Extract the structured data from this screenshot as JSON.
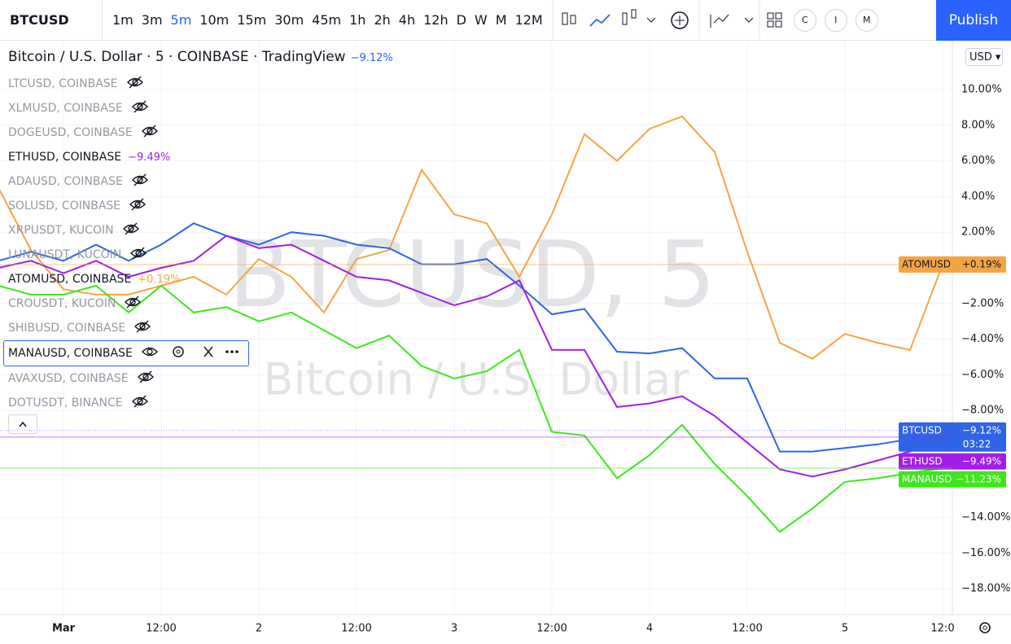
{
  "toolbar": {
    "symbol": "BTCUSD",
    "intervals": [
      "1m",
      "3m",
      "5m",
      "10m",
      "15m",
      "30m",
      "45m",
      "1h",
      "2h",
      "4h",
      "12h",
      "D",
      "W",
      "M",
      "12M"
    ],
    "buttons": [
      "C",
      "I",
      "M"
    ],
    "publish": "Publish"
  },
  "header": {
    "title": "Bitcoin / U.S. Dollar · 5 · COINBASE · TradingView",
    "change": "−9.12%",
    "currency": "USD"
  },
  "watermark": {
    "line1": "BTCUSD, 5",
    "line2": "Bitcoin / U.S. Dollar"
  },
  "legend": {
    "items": [
      {
        "label": "LTCUSD, COINBASE"
      },
      {
        "label": "XLMUSD, COINBASE"
      },
      {
        "label": "DOGEUSD, COINBASE"
      },
      {
        "label": "ETHUSD, COINBASE",
        "change": "−9.49%"
      },
      {
        "label": "ADAUSD, COINBASE"
      },
      {
        "label": "SOLUSD, COINBASE"
      },
      {
        "label": "XRPUSDT, KUCOIN"
      },
      {
        "label": "LUNAUSDT, KUCOIN"
      },
      {
        "label": "ATOMUSD, COINBASE",
        "change": "+0.19%"
      },
      {
        "label": "CROUSDT, KUCOIN"
      },
      {
        "label": "SHIBUSD, COINBASE"
      },
      {
        "label": "MANAUSD, COINBASE"
      },
      {
        "label": "AVAXUSD, COINBASE"
      },
      {
        "label": "DOTUSDT, BINANCE"
      }
    ]
  },
  "chart_data": {
    "type": "line",
    "countdown": "03:22",
    "grid": true,
    "x": [
      -8,
      -4,
      0,
      4,
      8,
      12,
      16,
      20,
      24,
      28,
      32,
      36,
      40,
      44,
      48,
      52,
      56,
      60,
      64,
      68,
      72,
      76,
      80,
      84,
      88,
      92,
      96,
      100,
      104,
      108
    ],
    "xlim": [
      -7.8,
      109.2
    ],
    "xticks": [
      {
        "value": 0,
        "label": "Mar"
      },
      {
        "value": 12,
        "label": "12:00"
      },
      {
        "value": 24,
        "label": "2"
      },
      {
        "value": 36,
        "label": "12:00"
      },
      {
        "value": 48,
        "label": "3"
      },
      {
        "value": 60,
        "label": "12:00"
      },
      {
        "value": 72,
        "label": "4"
      },
      {
        "value": 84,
        "label": "12:00"
      },
      {
        "value": 96,
        "label": "5"
      },
      {
        "value": 108,
        "label": "12:0"
      }
    ],
    "ylim": [
      -19.45,
      12.74
    ],
    "yticks": [
      {
        "value": 10,
        "label": "10.00%"
      },
      {
        "value": 8,
        "label": "8.00%"
      },
      {
        "value": 6,
        "label": "6.00%"
      },
      {
        "value": 4,
        "label": "4.00%"
      },
      {
        "value": 2,
        "label": "2.00%"
      },
      {
        "value": -2,
        "label": "−2.00%"
      },
      {
        "value": -4,
        "label": "−4.00%"
      },
      {
        "value": -6,
        "label": "−6.00%"
      },
      {
        "value": -8,
        "label": "−8.00%"
      },
      {
        "value": -14,
        "label": "−14.00%"
      },
      {
        "value": -16,
        "label": "−16.00%"
      },
      {
        "value": -18,
        "label": "−18.00%"
      }
    ],
    "series": [
      {
        "name": "ATOMUSD",
        "color": "#f5a443",
        "values": [
          4.5,
          1.0,
          -1.2,
          -1.5,
          -1.5,
          -1.0,
          -0.5,
          -1.5,
          0.5,
          -0.5,
          -2.5,
          0.5,
          1.0,
          5.5,
          3.0,
          2.5,
          -0.5,
          3.0,
          7.5,
          6.0,
          7.8,
          8.5,
          6.5,
          0.9,
          -4.2,
          -5.1,
          -3.7,
          -4.2,
          -4.6,
          0.19
        ],
        "value_labels": [
          null,
          null,
          null,
          null,
          null,
          null,
          null,
          null,
          null,
          null,
          null,
          null,
          null,
          null,
          null,
          null,
          null,
          null,
          null,
          null,
          null,
          null,
          null,
          null,
          null,
          null,
          null,
          null,
          null,
          "+0.19%"
        ]
      },
      {
        "name": "BTCUSD",
        "color": "#2f64e6",
        "values": [
          0.4,
          0.9,
          0.4,
          1.3,
          0.4,
          1.3,
          2.5,
          1.8,
          1.3,
          2.0,
          1.8,
          1.3,
          1.1,
          0.2,
          0.2,
          0.5,
          -1.0,
          -2.6,
          -2.3,
          -4.7,
          -4.8,
          -4.5,
          -6.2,
          -6.2,
          -10.3,
          -10.3,
          -10.1,
          -9.9,
          -9.6,
          -9.12
        ],
        "value_labels": [
          null,
          null,
          null,
          null,
          null,
          null,
          null,
          null,
          null,
          null,
          null,
          null,
          null,
          null,
          null,
          null,
          null,
          null,
          null,
          null,
          null,
          null,
          null,
          null,
          null,
          null,
          null,
          null,
          null,
          "−9.12%"
        ]
      },
      {
        "name": "ETHUSD",
        "color": "#a21ee8",
        "values": [
          0,
          0.4,
          -0.3,
          0.4,
          -0.5,
          0,
          0.4,
          1.8,
          1.1,
          1.3,
          0.4,
          -0.5,
          -0.7,
          -1.4,
          -2.1,
          -1.6,
          -0.7,
          -4.6,
          -4.6,
          -7.8,
          -7.6,
          -7.2,
          -8.3,
          -9.8,
          -11.3,
          -11.7,
          -11.3,
          -10.8,
          -10.3,
          -9.49
        ],
        "value_labels": [
          null,
          null,
          null,
          null,
          null,
          null,
          null,
          null,
          null,
          null,
          null,
          null,
          null,
          null,
          null,
          null,
          null,
          null,
          null,
          null,
          null,
          null,
          null,
          null,
          null,
          null,
          null,
          null,
          null,
          "−9.49%"
        ]
      },
      {
        "name": "MANAUSD",
        "color": "#3ee61c",
        "values": [
          -1.0,
          -1.5,
          -1.5,
          -1.0,
          -2.5,
          -1.0,
          -2.5,
          -2.2,
          -3.0,
          -2.5,
          -3.5,
          -4.5,
          -3.8,
          -5.5,
          -6.2,
          -5.8,
          -4.6,
          -9.2,
          -9.4,
          -11.8,
          -10.5,
          -8.8,
          -11.0,
          -12.8,
          -14.8,
          -13.5,
          -12.0,
          -11.8,
          -11.5,
          -11.23
        ],
        "value_labels": [
          null,
          null,
          null,
          null,
          null,
          null,
          null,
          null,
          null,
          null,
          null,
          null,
          null,
          null,
          null,
          null,
          null,
          null,
          null,
          null,
          null,
          null,
          null,
          null,
          null,
          null,
          null,
          null,
          null,
          "−11.23%"
        ]
      }
    ]
  }
}
